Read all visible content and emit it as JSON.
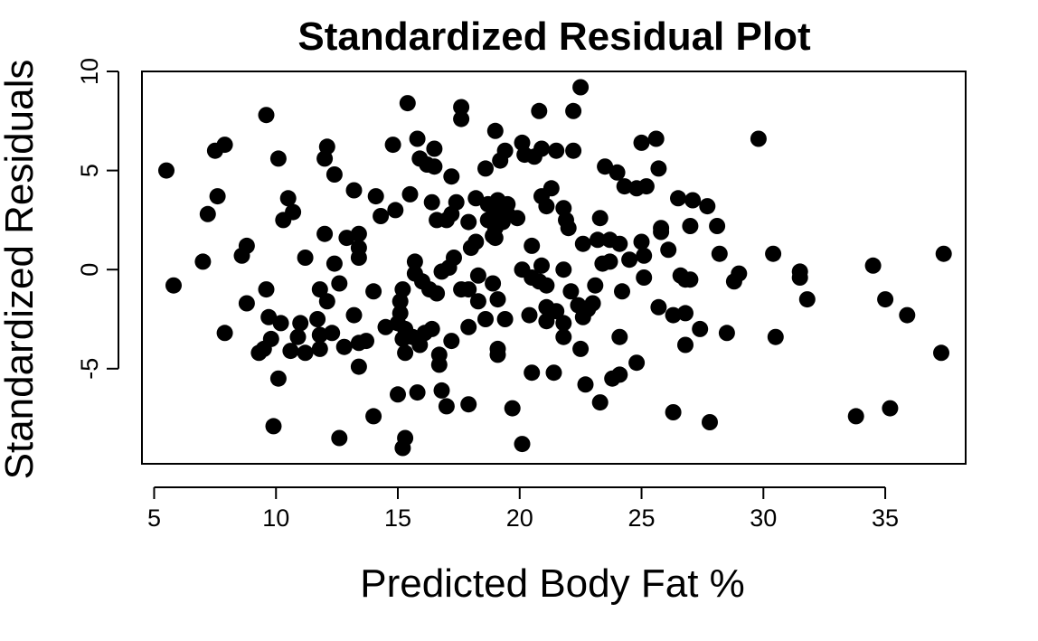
{
  "chart_data": {
    "type": "scatter",
    "title": "Standardized Residual Plot",
    "xlabel": "Predicted Body Fat %",
    "ylabel": "Standardized Residuals",
    "xlim": [
      4.5,
      38.3
    ],
    "ylim": [
      -9.8,
      10
    ],
    "xticks": [
      5,
      10,
      15,
      20,
      25,
      30,
      35
    ],
    "xtick_labels": [
      "5",
      "10",
      "15",
      "20",
      "25",
      "30",
      "35"
    ],
    "yticks": [
      -5,
      0,
      5,
      10
    ],
    "ytick_labels": [
      "-5",
      "0",
      "5",
      "10"
    ],
    "grid": false,
    "legend": "none",
    "marker_color": "#000000",
    "points": [
      [
        5.5,
        5.0
      ],
      [
        5.8,
        -0.8
      ],
      [
        7.0,
        0.4
      ],
      [
        7.2,
        2.8
      ],
      [
        7.5,
        6.0
      ],
      [
        7.6,
        3.7
      ],
      [
        7.9,
        6.3
      ],
      [
        7.9,
        -3.2
      ],
      [
        8.6,
        0.7
      ],
      [
        8.8,
        1.2
      ],
      [
        8.8,
        -1.7
      ],
      [
        9.3,
        -4.2
      ],
      [
        9.5,
        -4.0
      ],
      [
        9.6,
        -1.0
      ],
      [
        9.6,
        7.8
      ],
      [
        9.7,
        -2.4
      ],
      [
        9.8,
        -3.5
      ],
      [
        9.9,
        -7.9
      ],
      [
        10.1,
        5.6
      ],
      [
        10.1,
        -5.5
      ],
      [
        10.2,
        -2.7
      ],
      [
        10.3,
        2.5
      ],
      [
        10.5,
        3.6
      ],
      [
        10.6,
        -4.1
      ],
      [
        10.7,
        2.9
      ],
      [
        10.9,
        -3.4
      ],
      [
        11.0,
        -2.7
      ],
      [
        11.2,
        0.6
      ],
      [
        11.2,
        -4.2
      ],
      [
        11.7,
        -2.5
      ],
      [
        11.8,
        -3.3
      ],
      [
        11.8,
        -4.0
      ],
      [
        11.8,
        -1.0
      ],
      [
        12.0,
        5.6
      ],
      [
        12.0,
        1.8
      ],
      [
        12.1,
        -1.6
      ],
      [
        12.1,
        6.2
      ],
      [
        12.3,
        -3.2
      ],
      [
        12.4,
        4.8
      ],
      [
        12.4,
        0.3
      ],
      [
        12.6,
        -8.5
      ],
      [
        12.6,
        -0.7
      ],
      [
        12.8,
        -3.9
      ],
      [
        12.9,
        1.6
      ],
      [
        13.2,
        4.0
      ],
      [
        13.2,
        -2.3
      ],
      [
        13.4,
        -3.7
      ],
      [
        13.4,
        1.8
      ],
      [
        13.4,
        0.6
      ],
      [
        13.4,
        1.1
      ],
      [
        13.4,
        -4.9
      ],
      [
        13.7,
        -3.6
      ],
      [
        14.0,
        -1.1
      ],
      [
        14.0,
        -7.4
      ],
      [
        14.1,
        3.7
      ],
      [
        14.3,
        2.7
      ],
      [
        14.5,
        -2.9
      ],
      [
        14.8,
        6.3
      ],
      [
        14.9,
        3.0
      ],
      [
        15.0,
        -6.3
      ],
      [
        15.0,
        -2.7
      ],
      [
        15.1,
        -2.2
      ],
      [
        15.1,
        -1.6
      ],
      [
        15.2,
        -1.0
      ],
      [
        15.2,
        -3.5
      ],
      [
        15.2,
        -9.0
      ],
      [
        15.3,
        -3.0
      ],
      [
        15.3,
        -4.2
      ],
      [
        15.3,
        -8.5
      ],
      [
        15.4,
        8.4
      ],
      [
        15.5,
        3.8
      ],
      [
        15.6,
        -3.4
      ],
      [
        15.7,
        0.4
      ],
      [
        15.7,
        -0.2
      ],
      [
        15.8,
        6.6
      ],
      [
        15.8,
        -6.2
      ],
      [
        15.9,
        5.6
      ],
      [
        15.9,
        -3.8
      ],
      [
        16.0,
        -0.6
      ],
      [
        16.1,
        -3.2
      ],
      [
        16.2,
        5.3
      ],
      [
        16.3,
        -1.0
      ],
      [
        16.4,
        3.4
      ],
      [
        16.4,
        -3.0
      ],
      [
        16.5,
        6.1
      ],
      [
        16.5,
        5.2
      ],
      [
        16.6,
        2.5
      ],
      [
        16.6,
        -1.2
      ],
      [
        16.7,
        -4.3
      ],
      [
        16.7,
        -4.8
      ],
      [
        16.8,
        -0.1
      ],
      [
        16.8,
        -6.1
      ],
      [
        17.0,
        2.5
      ],
      [
        17.0,
        -6.9
      ],
      [
        17.1,
        0.1
      ],
      [
        17.2,
        4.7
      ],
      [
        17.2,
        -3.6
      ],
      [
        17.2,
        2.8
      ],
      [
        17.3,
        0.6
      ],
      [
        17.4,
        3.4
      ],
      [
        17.6,
        8.2
      ],
      [
        17.6,
        7.6
      ],
      [
        17.6,
        -1.0
      ],
      [
        17.9,
        -6.8
      ],
      [
        17.9,
        -1.0
      ],
      [
        17.9,
        -2.9
      ],
      [
        17.9,
        2.4
      ],
      [
        18.0,
        1.1
      ],
      [
        18.2,
        3.6
      ],
      [
        18.2,
        1.4
      ],
      [
        18.3,
        -1.6
      ],
      [
        18.3,
        -0.3
      ],
      [
        18.6,
        5.1
      ],
      [
        18.6,
        -2.5
      ],
      [
        18.7,
        2.5
      ],
      [
        18.7,
        3.3
      ],
      [
        18.9,
        -0.7
      ],
      [
        18.9,
        1.7
      ],
      [
        18.9,
        3.2
      ],
      [
        19.0,
        2.1
      ],
      [
        19.0,
        1.6
      ],
      [
        19.0,
        7.0
      ],
      [
        19.1,
        2.7
      ],
      [
        19.1,
        3.5
      ],
      [
        19.1,
        -1.5
      ],
      [
        19.1,
        -4.0
      ],
      [
        19.1,
        -4.3
      ],
      [
        19.2,
        3.0
      ],
      [
        19.2,
        5.5
      ],
      [
        19.3,
        3.0
      ],
      [
        19.3,
        2.4
      ],
      [
        19.4,
        6.0
      ],
      [
        19.4,
        -2.5
      ],
      [
        19.5,
        3.3
      ],
      [
        19.5,
        2.8
      ],
      [
        19.7,
        -7.0
      ],
      [
        19.9,
        2.6
      ],
      [
        20.1,
        6.4
      ],
      [
        20.1,
        0.0
      ],
      [
        20.1,
        -8.8
      ],
      [
        20.2,
        5.8
      ],
      [
        20.4,
        -2.3
      ],
      [
        20.5,
        -5.2
      ],
      [
        20.5,
        1.2
      ],
      [
        20.5,
        -0.4
      ],
      [
        20.6,
        5.7
      ],
      [
        20.8,
        -0.6
      ],
      [
        20.8,
        8.0
      ],
      [
        20.9,
        0.2
      ],
      [
        20.9,
        6.1
      ],
      [
        20.9,
        3.7
      ],
      [
        21.1,
        -1.9
      ],
      [
        21.1,
        3.2
      ],
      [
        21.1,
        -0.8
      ],
      [
        21.1,
        -2.6
      ],
      [
        21.3,
        4.1
      ],
      [
        21.4,
        -5.2
      ],
      [
        21.5,
        -2.1
      ],
      [
        21.5,
        6.0
      ],
      [
        21.8,
        -2.7
      ],
      [
        21.8,
        0.0
      ],
      [
        21.8,
        -3.4
      ],
      [
        21.8,
        3.1
      ],
      [
        21.9,
        2.5
      ],
      [
        22.0,
        2.1
      ],
      [
        22.1,
        -1.1
      ],
      [
        22.2,
        6.0
      ],
      [
        22.2,
        8.0
      ],
      [
        22.4,
        -1.8
      ],
      [
        22.5,
        9.2
      ],
      [
        22.5,
        -4.0
      ],
      [
        22.6,
        -2.4
      ],
      [
        22.6,
        1.3
      ],
      [
        22.7,
        -5.8
      ],
      [
        22.8,
        -2.0
      ],
      [
        23.0,
        -1.7
      ],
      [
        23.1,
        -0.8
      ],
      [
        23.2,
        1.5
      ],
      [
        23.3,
        -6.7
      ],
      [
        23.3,
        2.6
      ],
      [
        23.4,
        0.3
      ],
      [
        23.5,
        5.2
      ],
      [
        23.7,
        0.4
      ],
      [
        23.7,
        1.5
      ],
      [
        23.8,
        -5.5
      ],
      [
        24.0,
        4.9
      ],
      [
        24.1,
        -5.3
      ],
      [
        24.1,
        1.3
      ],
      [
        24.1,
        -3.4
      ],
      [
        24.2,
        -1.1
      ],
      [
        24.3,
        4.2
      ],
      [
        24.5,
        0.5
      ],
      [
        24.8,
        4.1
      ],
      [
        24.8,
        -4.7
      ],
      [
        25.0,
        6.4
      ],
      [
        25.0,
        1.4
      ],
      [
        25.1,
        0.7
      ],
      [
        25.1,
        -0.4
      ],
      [
        25.2,
        4.2
      ],
      [
        25.6,
        6.6
      ],
      [
        25.7,
        5.1
      ],
      [
        25.7,
        -1.9
      ],
      [
        25.8,
        2.1
      ],
      [
        25.8,
        1.9
      ],
      [
        26.1,
        1.0
      ],
      [
        26.3,
        -7.2
      ],
      [
        26.3,
        -2.3
      ],
      [
        26.5,
        3.6
      ],
      [
        26.6,
        -0.3
      ],
      [
        26.8,
        -2.2
      ],
      [
        26.8,
        -0.5
      ],
      [
        26.8,
        -3.8
      ],
      [
        27.0,
        2.2
      ],
      [
        27.0,
        -0.5
      ],
      [
        27.1,
        3.5
      ],
      [
        27.4,
        -3.0
      ],
      [
        27.7,
        3.2
      ],
      [
        27.8,
        -7.7
      ],
      [
        28.1,
        2.2
      ],
      [
        28.2,
        0.8
      ],
      [
        28.5,
        -3.2
      ],
      [
        28.8,
        -0.6
      ],
      [
        29.0,
        -0.2
      ],
      [
        29.8,
        6.6
      ],
      [
        30.4,
        0.8
      ],
      [
        30.5,
        -3.4
      ],
      [
        31.5,
        -0.1
      ],
      [
        31.5,
        -0.4
      ],
      [
        31.8,
        -1.5
      ],
      [
        33.8,
        -7.4
      ],
      [
        34.5,
        0.2
      ],
      [
        35.0,
        -1.5
      ],
      [
        35.2,
        -7.0
      ],
      [
        35.9,
        -2.3
      ],
      [
        37.3,
        -4.2
      ],
      [
        37.4,
        0.8
      ]
    ]
  }
}
